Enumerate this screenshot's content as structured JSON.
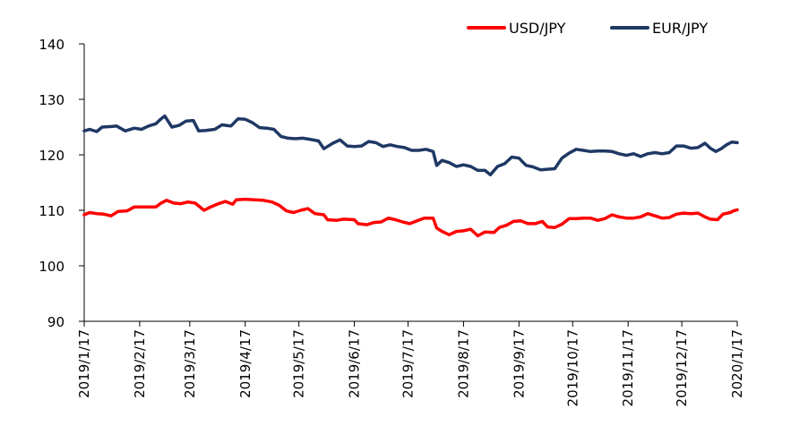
{
  "chart_data": {
    "type": "line",
    "title": "",
    "xlabel": "",
    "ylabel": "",
    "ylim": [
      90,
      140
    ],
    "yticks": [
      90,
      100,
      110,
      120,
      130,
      140
    ],
    "grid": false,
    "legend_position": "top-right",
    "x_range": [
      "2019/1/17",
      "2020/1/17"
    ],
    "x_ticks": [
      "2019/1/17",
      "2019/2/17",
      "2019/3/17",
      "2019/4/17",
      "2019/5/17",
      "2019/6/17",
      "2019/7/17",
      "2019/8/17",
      "2019/9/17",
      "2019/10/17",
      "2019/11/17",
      "2019/12/17",
      "2020/1/17"
    ],
    "series": [
      {
        "name": "USD/JPY",
        "color": "#ff0000",
        "points": [
          [
            "2019/1/17",
            109.2
          ],
          [
            "2019/1/20",
            109.6
          ],
          [
            "2019/1/24",
            109.4
          ],
          [
            "2019/1/28",
            109.3
          ],
          [
            "2019/2/1",
            109.0
          ],
          [
            "2019/2/5",
            109.8
          ],
          [
            "2019/2/10",
            109.9
          ],
          [
            "2019/2/14",
            110.6
          ],
          [
            "2019/2/20",
            110.6
          ],
          [
            "2019/2/26",
            110.6
          ],
          [
            "2019/3/1",
            111.3
          ],
          [
            "2019/3/4",
            111.8
          ],
          [
            "2019/3/8",
            111.3
          ],
          [
            "2019/3/12",
            111.2
          ],
          [
            "2019/3/16",
            111.5
          ],
          [
            "2019/3/20",
            111.3
          ],
          [
            "2019/3/25",
            110.0
          ],
          [
            "2019/3/28",
            110.5
          ],
          [
            "2019/4/2",
            111.2
          ],
          [
            "2019/4/6",
            111.6
          ],
          [
            "2019/4/10",
            111.1
          ],
          [
            "2019/4/12",
            111.9
          ],
          [
            "2019/4/17",
            112.0
          ],
          [
            "2019/4/22",
            111.9
          ],
          [
            "2019/4/27",
            111.8
          ],
          [
            "2019/5/2",
            111.5
          ],
          [
            "2019/5/6",
            110.9
          ],
          [
            "2019/5/10",
            109.9
          ],
          [
            "2019/5/14",
            109.6
          ],
          [
            "2019/5/18",
            110.0
          ],
          [
            "2019/5/22",
            110.3
          ],
          [
            "2019/5/26",
            109.4
          ],
          [
            "2019/5/31",
            109.2
          ],
          [
            "2019/6/2",
            108.3
          ],
          [
            "2019/6/7",
            108.2
          ],
          [
            "2019/6/11",
            108.4
          ],
          [
            "2019/6/17",
            108.3
          ],
          [
            "2019/6/19",
            107.6
          ],
          [
            "2019/6/24",
            107.4
          ],
          [
            "2019/6/28",
            107.8
          ],
          [
            "2019/7/2",
            107.9
          ],
          [
            "2019/7/6",
            108.6
          ],
          [
            "2019/7/10",
            108.3
          ],
          [
            "2019/7/14",
            107.9
          ],
          [
            "2019/7/18",
            107.6
          ],
          [
            "2019/7/22",
            108.1
          ],
          [
            "2019/7/26",
            108.6
          ],
          [
            "2019/7/31",
            108.6
          ],
          [
            "2019/8/2",
            106.8
          ],
          [
            "2019/8/5",
            106.2
          ],
          [
            "2019/8/9",
            105.6
          ],
          [
            "2019/8/13",
            106.2
          ],
          [
            "2019/8/17",
            106.3
          ],
          [
            "2019/8/21",
            106.6
          ],
          [
            "2019/8/25",
            105.4
          ],
          [
            "2019/8/29",
            106.1
          ],
          [
            "2019/9/3",
            106.0
          ],
          [
            "2019/9/6",
            106.9
          ],
          [
            "2019/9/10",
            107.3
          ],
          [
            "2019/9/14",
            108.0
          ],
          [
            "2019/9/18",
            108.1
          ],
          [
            "2019/9/22",
            107.6
          ],
          [
            "2019/9/26",
            107.6
          ],
          [
            "2019/9/30",
            108.0
          ],
          [
            "2019/10/3",
            107.0
          ],
          [
            "2019/10/7",
            106.9
          ],
          [
            "2019/10/11",
            107.5
          ],
          [
            "2019/10/15",
            108.5
          ],
          [
            "2019/10/19",
            108.5
          ],
          [
            "2019/10/23",
            108.6
          ],
          [
            "2019/10/27",
            108.6
          ],
          [
            "2019/10/31",
            108.2
          ],
          [
            "2019/11/4",
            108.5
          ],
          [
            "2019/11/8",
            109.2
          ],
          [
            "2019/11/12",
            108.8
          ],
          [
            "2019/11/16",
            108.6
          ],
          [
            "2019/11/20",
            108.6
          ],
          [
            "2019/11/24",
            108.8
          ],
          [
            "2019/11/28",
            109.4
          ],
          [
            "2019/12/2",
            109.0
          ],
          [
            "2019/12/6",
            108.6
          ],
          [
            "2019/12/10",
            108.7
          ],
          [
            "2019/12/14",
            109.3
          ],
          [
            "2019/12/18",
            109.5
          ],
          [
            "2019/12/22",
            109.4
          ],
          [
            "2019/12/26",
            109.5
          ],
          [
            "2019/12/30",
            108.8
          ],
          [
            "2020/1/2",
            108.4
          ],
          [
            "2020/1/6",
            108.3
          ],
          [
            "2020/1/9",
            109.3
          ],
          [
            "2020/1/13",
            109.6
          ],
          [
            "2020/1/15",
            109.9
          ],
          [
            "2020/1/17",
            110.1
          ]
        ]
      },
      {
        "name": "EUR/JPY",
        "color": "#1f3864",
        "points": [
          [
            "2019/1/17",
            124.3
          ],
          [
            "2019/1/20",
            124.6
          ],
          [
            "2019/1/24",
            124.2
          ],
          [
            "2019/1/27",
            125.0
          ],
          [
            "2019/2/1",
            125.1
          ],
          [
            "2019/2/4",
            125.2
          ],
          [
            "2019/2/9",
            124.3
          ],
          [
            "2019/2/14",
            124.8
          ],
          [
            "2019/2/18",
            124.6
          ],
          [
            "2019/2/22",
            125.2
          ],
          [
            "2019/2/26",
            125.6
          ],
          [
            "2019/3/1",
            126.5
          ],
          [
            "2019/3/3",
            127.0
          ],
          [
            "2019/3/7",
            125.0
          ],
          [
            "2019/3/11",
            125.3
          ],
          [
            "2019/3/15",
            126.1
          ],
          [
            "2019/3/19",
            126.2
          ],
          [
            "2019/3/22",
            124.3
          ],
          [
            "2019/3/26",
            124.4
          ],
          [
            "2019/3/31",
            124.6
          ],
          [
            "2019/4/4",
            125.4
          ],
          [
            "2019/4/9",
            125.2
          ],
          [
            "2019/4/13",
            126.5
          ],
          [
            "2019/4/17",
            126.4
          ],
          [
            "2019/4/21",
            125.8
          ],
          [
            "2019/4/25",
            124.9
          ],
          [
            "2019/4/29",
            124.8
          ],
          [
            "2019/5/3",
            124.6
          ],
          [
            "2019/5/7",
            123.3
          ],
          [
            "2019/5/11",
            123.0
          ],
          [
            "2019/5/15",
            122.9
          ],
          [
            "2019/5/19",
            123.0
          ],
          [
            "2019/5/23",
            122.8
          ],
          [
            "2019/5/28",
            122.5
          ],
          [
            "2019/5/31",
            121.1
          ],
          [
            "2019/6/5",
            122.1
          ],
          [
            "2019/6/9",
            122.7
          ],
          [
            "2019/6/13",
            121.6
          ],
          [
            "2019/6/17",
            121.5
          ],
          [
            "2019/6/21",
            121.6
          ],
          [
            "2019/6/25",
            122.4
          ],
          [
            "2019/6/29",
            122.2
          ],
          [
            "2019/7/3",
            121.5
          ],
          [
            "2019/7/7",
            121.8
          ],
          [
            "2019/7/11",
            121.5
          ],
          [
            "2019/7/15",
            121.3
          ],
          [
            "2019/7/19",
            120.8
          ],
          [
            "2019/7/23",
            120.8
          ],
          [
            "2019/7/27",
            121.0
          ],
          [
            "2019/7/31",
            120.6
          ],
          [
            "2019/8/2",
            118.1
          ],
          [
            "2019/8/5",
            119.0
          ],
          [
            "2019/8/9",
            118.6
          ],
          [
            "2019/8/13",
            117.9
          ],
          [
            "2019/8/17",
            118.2
          ],
          [
            "2019/8/21",
            117.9
          ],
          [
            "2019/8/25",
            117.2
          ],
          [
            "2019/8/29",
            117.2
          ],
          [
            "2019/9/1",
            116.4
          ],
          [
            "2019/9/5",
            117.9
          ],
          [
            "2019/9/9",
            118.4
          ],
          [
            "2019/9/13",
            119.6
          ],
          [
            "2019/9/17",
            119.4
          ],
          [
            "2019/9/21",
            118.1
          ],
          [
            "2019/9/25",
            117.8
          ],
          [
            "2019/9/29",
            117.3
          ],
          [
            "2019/10/3",
            117.4
          ],
          [
            "2019/10/7",
            117.5
          ],
          [
            "2019/10/11",
            119.4
          ],
          [
            "2019/10/15",
            120.3
          ],
          [
            "2019/10/19",
            121.0
          ],
          [
            "2019/10/23",
            120.8
          ],
          [
            "2019/10/27",
            120.6
          ],
          [
            "2019/10/31",
            120.7
          ],
          [
            "2019/11/4",
            120.7
          ],
          [
            "2019/11/8",
            120.6
          ],
          [
            "2019/11/12",
            120.2
          ],
          [
            "2019/11/16",
            119.9
          ],
          [
            "2019/11/20",
            120.2
          ],
          [
            "2019/11/24",
            119.7
          ],
          [
            "2019/11/28",
            120.2
          ],
          [
            "2019/12/2",
            120.4
          ],
          [
            "2019/12/6",
            120.2
          ],
          [
            "2019/12/10",
            120.4
          ],
          [
            "2019/12/14",
            121.6
          ],
          [
            "2019/12/18",
            121.6
          ],
          [
            "2019/12/22",
            121.2
          ],
          [
            "2019/12/26",
            121.3
          ],
          [
            "2019/12/30",
            122.1
          ],
          [
            "2020/1/2",
            121.2
          ],
          [
            "2020/1/5",
            120.6
          ],
          [
            "2020/1/8",
            121.1
          ],
          [
            "2020/1/11",
            121.8
          ],
          [
            "2020/1/14",
            122.3
          ],
          [
            "2020/1/17",
            122.2
          ]
        ]
      }
    ]
  }
}
